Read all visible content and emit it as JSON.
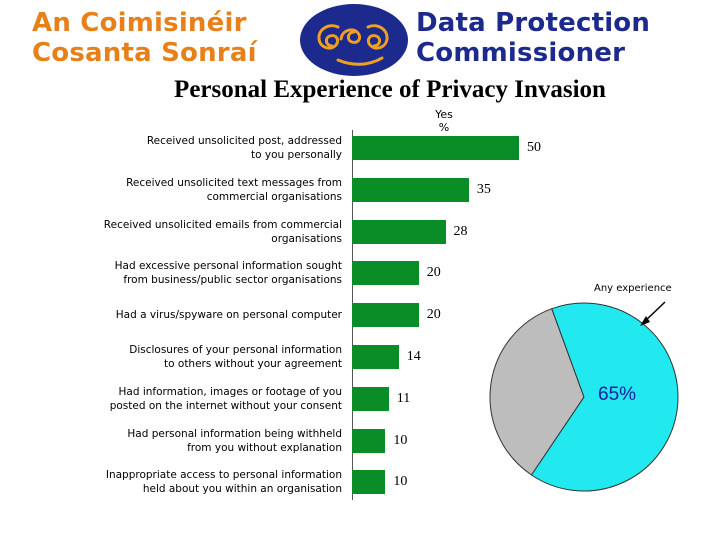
{
  "header": {
    "org_irish_line1": "An Coimisinéir",
    "org_irish_line2": "Cosanta Sonraí",
    "org_english_line1": "Data Protection",
    "org_english_line2": "Commissioner"
  },
  "chart_data": [
    {
      "type": "bar",
      "orientation": "horizontal",
      "title": "Personal Experience of Privacy Invasion",
      "column_header_line1": "Yes",
      "column_header_line2": "%",
      "categories": [
        [
          "Received unsolicited post, addressed",
          "to you personally"
        ],
        [
          "Received unsolicited text messages from",
          "commercial organisations"
        ],
        [
          "Received unsolicited emails from commercial",
          "organisations"
        ],
        [
          "Had excessive personal information sought",
          "from business/public sector organisations"
        ],
        [
          "Had a virus/spyware on personal computer"
        ],
        [
          "Disclosures of your personal information",
          "to others without your agreement"
        ],
        [
          "Had information, images or footage of you",
          "posted on the internet without your consent"
        ],
        [
          "Had personal information being withheld",
          "from you without explanation"
        ],
        [
          "Inappropriate access to personal information",
          "held about you within an organisation"
        ]
      ],
      "values": [
        50,
        35,
        28,
        20,
        20,
        14,
        11,
        10,
        10
      ],
      "bar_color": "#0a8c26"
    },
    {
      "type": "pie",
      "label": "Any experience",
      "slices": [
        {
          "value": 65,
          "display": "65%",
          "color": "#22e8ef"
        },
        {
          "value": 35,
          "color": "#bdbdbd"
        }
      ]
    }
  ]
}
